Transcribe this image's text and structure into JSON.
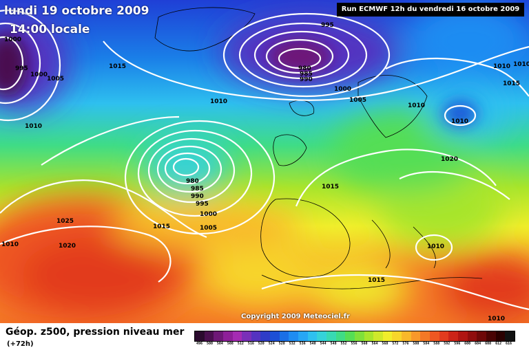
{
  "header": {
    "date": "lundi 19 octobre 2009",
    "time": "14:00 locale",
    "run": "Run ECMWF 12h du vendredi 16 octobre 2009"
  },
  "copyright": "Copyright 2009 Meteociel.fr",
  "caption": {
    "title": "Géop. z500, pression niveau mer",
    "forecast": "(+72h)"
  },
  "isobar_labels": [
    {
      "text": "1000"
    },
    {
      "text": "995"
    },
    {
      "text": "1000"
    },
    {
      "text": "1005"
    },
    {
      "text": "1015"
    },
    {
      "text": "995"
    },
    {
      "text": "980"
    },
    {
      "text": "985"
    },
    {
      "text": "990"
    },
    {
      "text": "1000"
    },
    {
      "text": "1005"
    },
    {
      "text": "1010"
    },
    {
      "text": "1010"
    },
    {
      "text": "1010"
    },
    {
      "text": "1015"
    },
    {
      "text": "1010"
    },
    {
      "text": "1010"
    },
    {
      "text": "980"
    },
    {
      "text": "985"
    },
    {
      "text": "990"
    },
    {
      "text": "995"
    },
    {
      "text": "1000"
    },
    {
      "text": "1005"
    },
    {
      "text": "1015"
    },
    {
      "text": "1025"
    },
    {
      "text": "1020"
    },
    {
      "text": "1010"
    },
    {
      "text": "1020"
    },
    {
      "text": "1015"
    },
    {
      "text": "1010"
    },
    {
      "text": "1015"
    },
    {
      "text": "1010"
    },
    {
      "text": "1010"
    }
  ],
  "legend": {
    "colors": [
      "#2b0a2e",
      "#4a0f4f",
      "#6e1877",
      "#8e1f99",
      "#a52bb3",
      "#7a2fb8",
      "#5533c0",
      "#2f3cc8",
      "#1c4fd6",
      "#1a6fe6",
      "#1f8cf2",
      "#27a6f5",
      "#2ec0ef",
      "#35d2d9",
      "#38d9b3",
      "#3fdc86",
      "#55de55",
      "#7fe03a",
      "#a8e52c",
      "#cfe92a",
      "#f0ee2b",
      "#f7d62a",
      "#f8b82a",
      "#f8982a",
      "#f47826",
      "#ee5722",
      "#e23b1e",
      "#cc2418",
      "#b01512",
      "#900d0d",
      "#6e0808",
      "#4a0404",
      "#2a0000",
      "#111111"
    ],
    "ticks": [
      "496",
      "500",
      "504",
      "508",
      "512",
      "516",
      "520",
      "524",
      "528",
      "532",
      "536",
      "540",
      "544",
      "548",
      "552",
      "556",
      "560",
      "564",
      "568",
      "572",
      "576",
      "580",
      "584",
      "588",
      "592",
      "596",
      "600",
      "604",
      "608",
      "612",
      "616"
    ]
  }
}
